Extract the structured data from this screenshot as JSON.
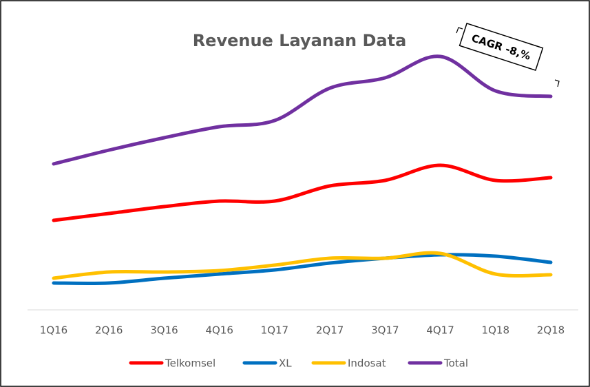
{
  "chart_data": {
    "type": "line",
    "title": "Revenue Layanan Data",
    "annotation": "CAGR -8,%",
    "categories": [
      "1Q16",
      "2Q16",
      "3Q16",
      "4Q16",
      "1Q17",
      "2Q17",
      "3Q17",
      "4Q17",
      "1Q18",
      "2Q18"
    ],
    "series": [
      {
        "name": "Telkomsel",
        "color": "#ff0000",
        "values": [
          130,
          140,
          150,
          158,
          158,
          180,
          188,
          210,
          188,
          192
        ]
      },
      {
        "name": "XL",
        "color": "#0070c0",
        "values": [
          39,
          39,
          46,
          52,
          58,
          68,
          75,
          80,
          78,
          69
        ]
      },
      {
        "name": "Indosat",
        "color": "#ffc000",
        "values": [
          46,
          55,
          55,
          57,
          65,
          75,
          75,
          82,
          52,
          51
        ]
      },
      {
        "name": "Total",
        "color": "#7030a0",
        "values": [
          212,
          232,
          250,
          266,
          275,
          322,
          337,
          368,
          318,
          310
        ]
      }
    ]
  }
}
